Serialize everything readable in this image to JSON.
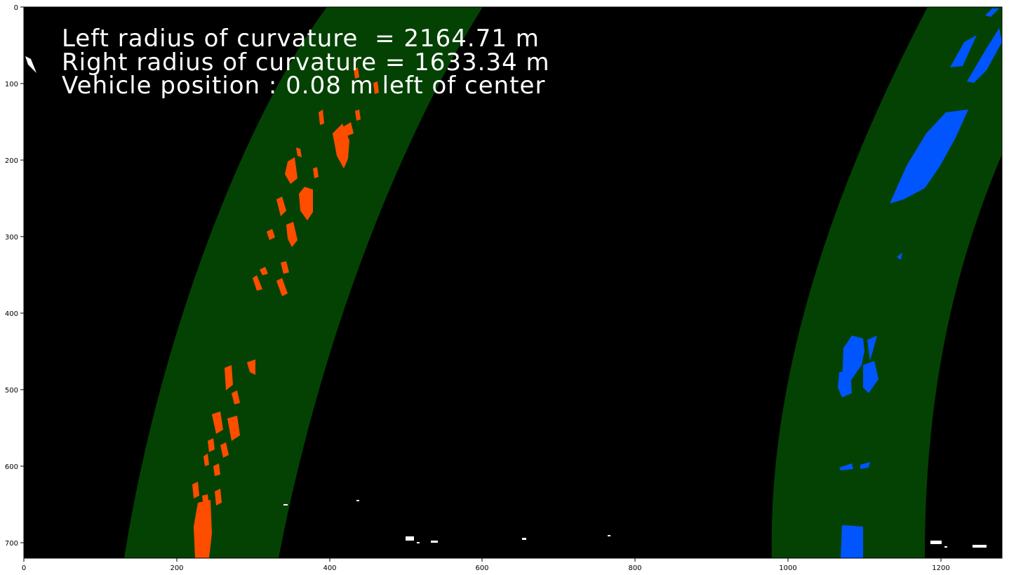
{
  "image": {
    "overlay_lines": [
      "Left radius of curvature  = 2164.71 m",
      "Right radius of curvature = 1633.34 m",
      "Vehicle position : 0.08 m left of center"
    ],
    "colors": {
      "background": "#000000",
      "lane_fill": "#034203",
      "left_pixels": "#ff4d00",
      "right_pixels": "#0055ff",
      "text": "#ffffff"
    }
  },
  "axes": {
    "x_ticks": [
      "0",
      "200",
      "400",
      "600",
      "800",
      "1000",
      "1200"
    ],
    "y_ticks": [
      "0",
      "100",
      "200",
      "300",
      "400",
      "500",
      "600",
      "700"
    ]
  }
}
